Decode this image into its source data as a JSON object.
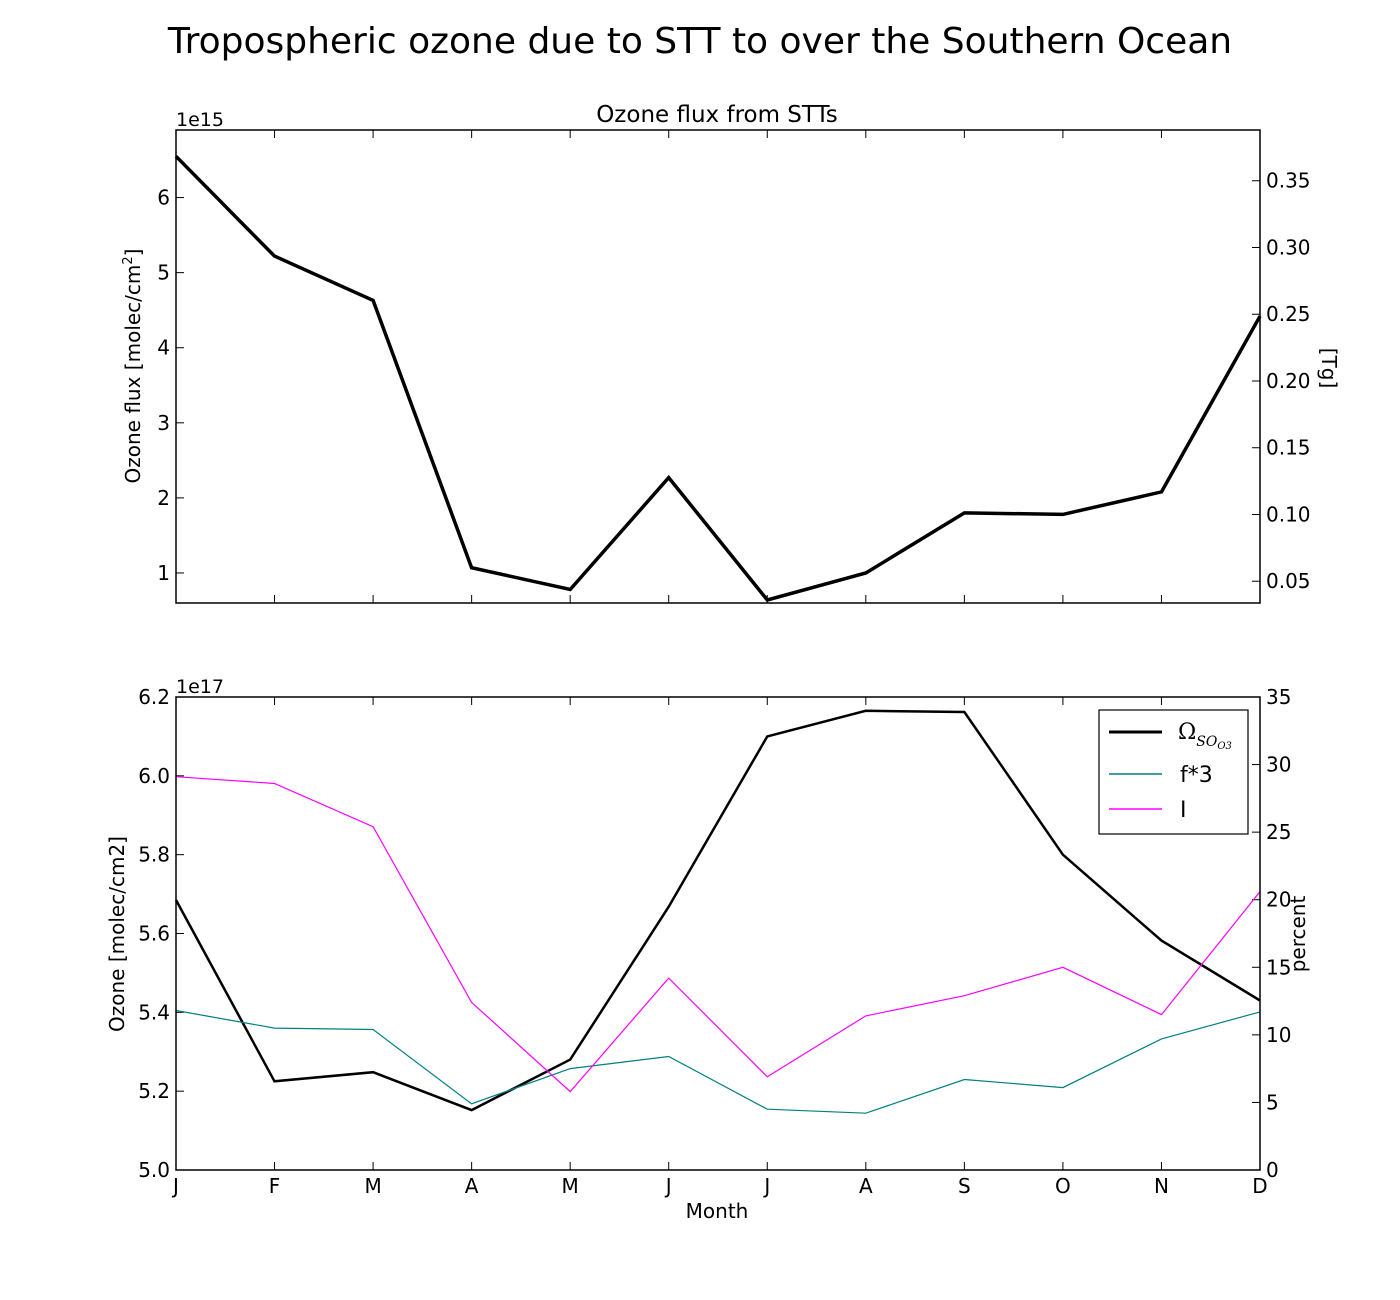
{
  "suptitle": "Tropospheric ozone due to STT to over the Southern Ocean",
  "chart_data": [
    {
      "type": "line",
      "title": "Ozone flux from STTs",
      "categories": [
        "J",
        "F",
        "M",
        "A",
        "M",
        "J",
        "J",
        "A",
        "S",
        "O",
        "N",
        "D"
      ],
      "series": [
        {
          "values": [
            6.55,
            5.22,
            4.63,
            1.07,
            0.78,
            2.27,
            0.64,
            1.0,
            1.8,
            1.78,
            2.08,
            4.42
          ],
          "color": "#000000"
        }
      ],
      "ylabel": "Ozone flux [molec/cm",
      "ylabel_sup": "2",
      "ylabel_end": "]",
      "y_offset": "1e15",
      "ylim": [
        0.6,
        6.9
      ],
      "yticks": [
        "1",
        "2",
        "3",
        "4",
        "5",
        "6"
      ],
      "y2label": "[Tg]",
      "y2lim": [
        0.0337,
        0.388
      ],
      "y2ticks": [
        "0.05",
        "0.10",
        "0.15",
        "0.20",
        "0.25",
        "0.30",
        "0.35"
      ],
      "grid": false
    },
    {
      "type": "line",
      "categories": [
        "J",
        "F",
        "M",
        "A",
        "M",
        "J",
        "J",
        "A",
        "S",
        "O",
        "N",
        "D"
      ],
      "xlabel": "Month",
      "ylabel": "Ozone [molec/cm2]",
      "y_offset": "1e17",
      "ylim": [
        5.0,
        6.2
      ],
      "yticks": [
        "5.0",
        "5.2",
        "5.4",
        "5.6",
        "5.8",
        "6.0",
        "6.2"
      ],
      "y2label": "percent",
      "y2lim": [
        0,
        35
      ],
      "y2ticks": [
        "0",
        "5",
        "10",
        "15",
        "20",
        "25",
        "30",
        "35"
      ],
      "series": [
        {
          "name_base": "Ω",
          "name_sub": "SO",
          "name_subsub": "O3",
          "axis": "left",
          "color": "#000000",
          "values": [
            5.685,
            5.225,
            5.248,
            5.152,
            5.28,
            5.668,
            6.1,
            6.165,
            6.162,
            5.8,
            5.582,
            5.43
          ]
        },
        {
          "name": "f*3",
          "axis": "right",
          "color": "#008080",
          "values": [
            11.8,
            10.5,
            10.4,
            4.9,
            7.5,
            8.4,
            4.5,
            4.2,
            6.7,
            6.1,
            9.7,
            11.7
          ]
        },
        {
          "name": "I",
          "axis": "right",
          "color": "#ff00ff",
          "values": [
            29.1,
            28.6,
            25.4,
            12.4,
            5.8,
            14.2,
            6.9,
            11.4,
            12.9,
            15.0,
            11.5,
            20.6
          ]
        }
      ],
      "legend": "top-right",
      "grid": false
    }
  ]
}
